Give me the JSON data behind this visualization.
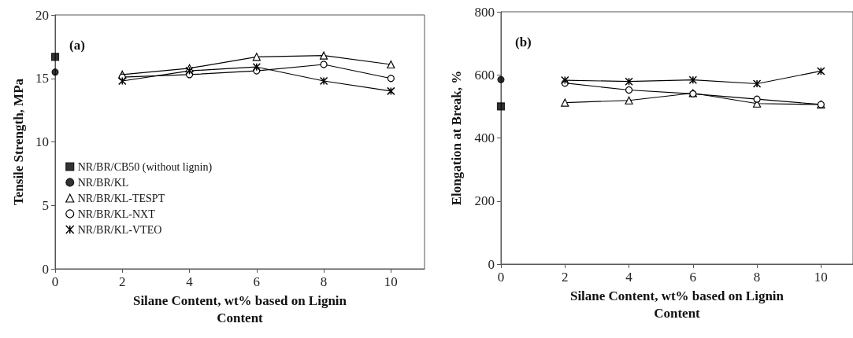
{
  "chart_data": [
    {
      "type": "line",
      "xlabel": "Silane Content, wt% based on Lignin Content",
      "ylabel": "Tensile Strength, MPa",
      "annotations": [
        "(a)"
      ],
      "xlim": [
        0,
        11
      ],
      "xticks": [
        0,
        2,
        4,
        6,
        8,
        10
      ],
      "ylim": [
        0,
        20
      ],
      "yticks": [
        0,
        5,
        10,
        15,
        20
      ],
      "grid": false,
      "legend": "left",
      "series": [
        {
          "name": "NR/BR/CB50 (without lignin)",
          "type": "scatter",
          "marker": "square",
          "color": "#000000",
          "x": [
            0
          ],
          "values": [
            16.7
          ]
        },
        {
          "name": "NR/BR/KL",
          "type": "scatter",
          "marker": "circle",
          "color": "#000000",
          "x": [
            0
          ],
          "values": [
            15.5
          ]
        },
        {
          "name": "NR/BR/KL-TESPT",
          "marker": "triangle",
          "color": "#000000",
          "x": [
            2,
            4,
            6,
            8,
            10
          ],
          "values": [
            15.3,
            15.8,
            16.7,
            16.8,
            16.1
          ]
        },
        {
          "name": "NR/BR/KL-NXT",
          "marker": "circle",
          "color": "#000000",
          "x": [
            2,
            4,
            6,
            8,
            10
          ],
          "values": [
            15.1,
            15.3,
            15.6,
            16.1,
            15.0
          ]
        },
        {
          "name": "NR/BR/KL-VTEO",
          "marker": "cross",
          "color": "#000000",
          "x": [
            2,
            4,
            6,
            8,
            10
          ],
          "values": [
            14.8,
            15.6,
            15.9,
            14.8,
            14.0
          ]
        }
      ]
    },
    {
      "type": "line",
      "xlabel": "Silane Content, wt% based on Lignin Content",
      "ylabel": "Elongation at Break, %",
      "annotations": [
        "(b)"
      ],
      "xlim": [
        0,
        11
      ],
      "xticks": [
        0,
        2,
        4,
        6,
        8,
        10
      ],
      "ylim": [
        0,
        800
      ],
      "yticks": [
        0,
        200,
        400,
        600,
        800
      ],
      "grid": false,
      "legend": false,
      "series": [
        {
          "type": "scatter",
          "marker": "square",
          "color": "#000000",
          "x": [
            0
          ],
          "values": [
            500
          ]
        },
        {
          "type": "scatter",
          "marker": "circle",
          "color": "#000000",
          "x": [
            0
          ],
          "values": [
            585
          ]
        },
        {
          "marker": "triangle",
          "color": "#000000",
          "x": [
            2,
            4,
            6,
            8,
            10
          ],
          "values": [
            512,
            519,
            542,
            509,
            506
          ]
        },
        {
          "marker": "circle",
          "color": "#000000",
          "x": [
            2,
            4,
            6,
            8,
            10
          ],
          "values": [
            574,
            552,
            540,
            523,
            506
          ]
        },
        {
          "marker": "cross",
          "color": "#000000",
          "x": [
            2,
            4,
            6,
            8,
            10
          ],
          "values": [
            583,
            579,
            584,
            572,
            612
          ]
        }
      ]
    }
  ]
}
